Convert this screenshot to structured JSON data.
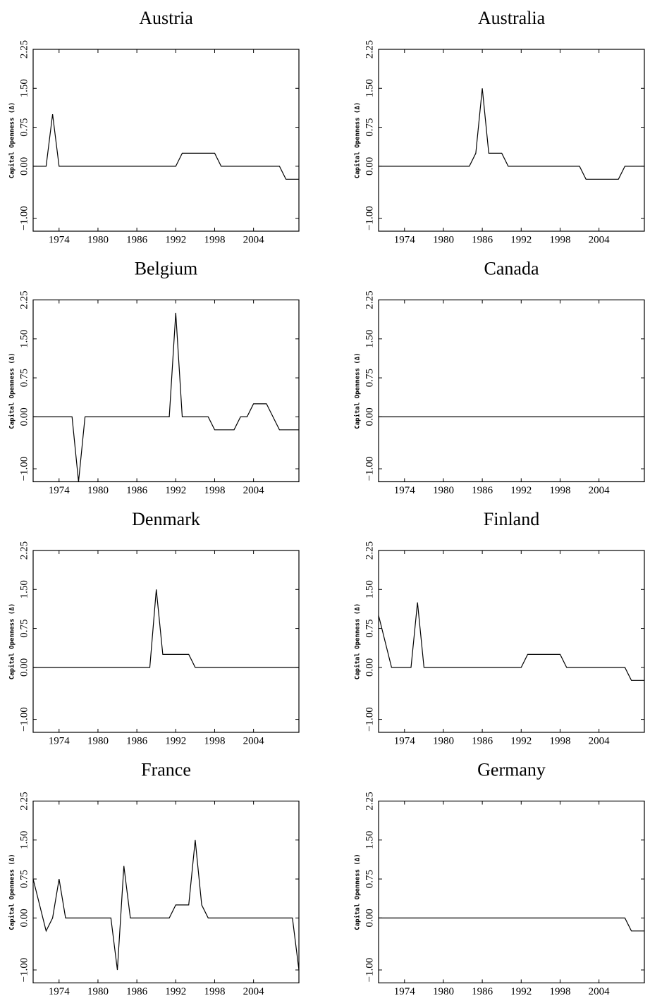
{
  "chart_data": [
    {
      "type": "line",
      "title": "Austria",
      "ylabel": "Capital Openness (Δ)",
      "color": "#000000",
      "xlim": [
        1970,
        2011
      ],
      "xticks": [
        1974,
        1980,
        1986,
        1992,
        1998,
        2004
      ],
      "ylim": [
        -1.25,
        2.25
      ],
      "yticks": [
        {
          "value": -1,
          "label": "−1.00"
        },
        {
          "value": 0,
          "label": "0.00"
        },
        0.75,
        {
          "value": 1.5,
          "label": "1.50"
        },
        2.25
      ],
      "x": [
        1970,
        1972,
        1973,
        1974,
        1992,
        1993,
        1998,
        1999,
        2008,
        2009,
        2011
      ],
      "values": [
        0,
        0,
        1,
        0,
        0,
        0.25,
        0.25,
        0,
        0,
        -0.25,
        -0.25
      ]
    },
    {
      "type": "line",
      "title": "Australia",
      "ylabel": "Capital Openness (Δ)",
      "color": "#000000",
      "xlim": [
        1970,
        2011
      ],
      "xticks": [
        1974,
        1980,
        1986,
        1992,
        1998,
        2004
      ],
      "ylim": [
        -1.25,
        2.25
      ],
      "yticks": [
        {
          "value": -1,
          "label": "−1.00"
        },
        {
          "value": 0,
          "label": "0.00"
        },
        0.75,
        {
          "value": 1.5,
          "label": "1.50"
        },
        2.25
      ],
      "x": [
        1970,
        1984,
        1985,
        1986,
        1987,
        1989,
        1990,
        2001,
        2002,
        2007,
        2008,
        2011
      ],
      "values": [
        0,
        0,
        0.25,
        1.5,
        0.25,
        0.25,
        0,
        0,
        -0.25,
        -0.25,
        0,
        0
      ]
    },
    {
      "type": "line",
      "title": "Belgium",
      "ylabel": "Capital Openness (Δ)",
      "color": "#000000",
      "xlim": [
        1970,
        2011
      ],
      "xticks": [
        1974,
        1980,
        1986,
        1992,
        1998,
        2004
      ],
      "ylim": [
        -1.25,
        2.25
      ],
      "yticks": [
        {
          "value": -1,
          "label": "−1.00"
        },
        {
          "value": 0,
          "label": "0.00"
        },
        0.75,
        {
          "value": 1.5,
          "label": "1.50"
        },
        2.25
      ],
      "x": [
        1970,
        1976,
        1977,
        1978,
        1991,
        1992,
        1993,
        1997,
        1998,
        2001,
        2002,
        2003,
        2004,
        2006,
        2008,
        2011
      ],
      "values": [
        0,
        0,
        -1.25,
        0,
        0,
        2,
        0,
        0,
        -0.25,
        -0.25,
        0,
        0,
        0.25,
        0.25,
        -0.25,
        -0.25
      ]
    },
    {
      "type": "line",
      "title": "Canada",
      "ylabel": "Capital Openness (Δ)",
      "color": "#000000",
      "xlim": [
        1970,
        2011
      ],
      "xticks": [
        1974,
        1980,
        1986,
        1992,
        1998,
        2004
      ],
      "ylim": [
        -1.25,
        2.25
      ],
      "yticks": [
        {
          "value": -1,
          "label": "−1.00"
        },
        {
          "value": 0,
          "label": "0.00"
        },
        0.75,
        {
          "value": 1.5,
          "label": "1.50"
        },
        2.25
      ],
      "x": [
        1970,
        2011
      ],
      "values": [
        0,
        0
      ]
    },
    {
      "type": "line",
      "title": "Denmark",
      "ylabel": "Capital Openness (Δ)",
      "color": "#000000",
      "xlim": [
        1970,
        2011
      ],
      "xticks": [
        1974,
        1980,
        1986,
        1992,
        1998,
        2004
      ],
      "ylim": [
        -1.25,
        2.25
      ],
      "yticks": [
        {
          "value": -1,
          "label": "−1.00"
        },
        {
          "value": 0,
          "label": "0.00"
        },
        0.75,
        {
          "value": 1.5,
          "label": "1.50"
        },
        2.25
      ],
      "x": [
        1970,
        1988,
        1989,
        1990,
        1994,
        1995,
        2011
      ],
      "values": [
        0,
        0,
        1.5,
        0.25,
        0.25,
        0,
        0
      ]
    },
    {
      "type": "line",
      "title": "Finland",
      "ylabel": "Capital Openness (Δ)",
      "color": "#000000",
      "xlim": [
        1970,
        2011
      ],
      "xticks": [
        1974,
        1980,
        1986,
        1992,
        1998,
        2004
      ],
      "ylim": [
        -1.25,
        2.25
      ],
      "yticks": [
        {
          "value": -1,
          "label": "−1.00"
        },
        {
          "value": 0,
          "label": "0.00"
        },
        0.75,
        {
          "value": 1.5,
          "label": "1.50"
        },
        2.25
      ],
      "x": [
        1970,
        1972,
        1975,
        1976,
        1977,
        1992,
        1993,
        1998,
        1999,
        2008,
        2009,
        2011
      ],
      "values": [
        1,
        0,
        0,
        1.25,
        0,
        0,
        0.25,
        0.25,
        0,
        0,
        -0.25,
        -0.25
      ]
    },
    {
      "type": "line",
      "title": "France",
      "ylabel": "Capital Openness (Δ)",
      "color": "#000000",
      "xlim": [
        1970,
        2011
      ],
      "xticks": [
        1974,
        1980,
        1986,
        1992,
        1998,
        2004
      ],
      "ylim": [
        -1.25,
        2.25
      ],
      "yticks": [
        {
          "value": -1,
          "label": "−1.00"
        },
        {
          "value": 0,
          "label": "0.00"
        },
        0.75,
        {
          "value": 1.5,
          "label": "1.50"
        },
        2.25
      ],
      "x": [
        1970,
        1972,
        1973,
        1974,
        1975,
        1982,
        1983,
        1984,
        1985,
        1991,
        1992,
        1994,
        1995,
        1996,
        1997,
        2010,
        2011
      ],
      "values": [
        0.75,
        -0.25,
        0,
        0.75,
        0,
        0,
        -1,
        1,
        0,
        0,
        0.25,
        0.25,
        1.5,
        0.25,
        0,
        0,
        -1
      ]
    },
    {
      "type": "line",
      "title": "Germany",
      "ylabel": "Capital Openness (Δ)",
      "color": "#000000",
      "xlim": [
        1970,
        2011
      ],
      "xticks": [
        1974,
        1980,
        1986,
        1992,
        1998,
        2004
      ],
      "ylim": [
        -1.25,
        2.25
      ],
      "yticks": [
        {
          "value": -1,
          "label": "−1.00"
        },
        {
          "value": 0,
          "label": "0.00"
        },
        0.75,
        {
          "value": 1.5,
          "label": "1.50"
        },
        2.25
      ],
      "x": [
        1970,
        2008,
        2009,
        2011
      ],
      "values": [
        0,
        0,
        -0.25,
        -0.25
      ]
    }
  ]
}
